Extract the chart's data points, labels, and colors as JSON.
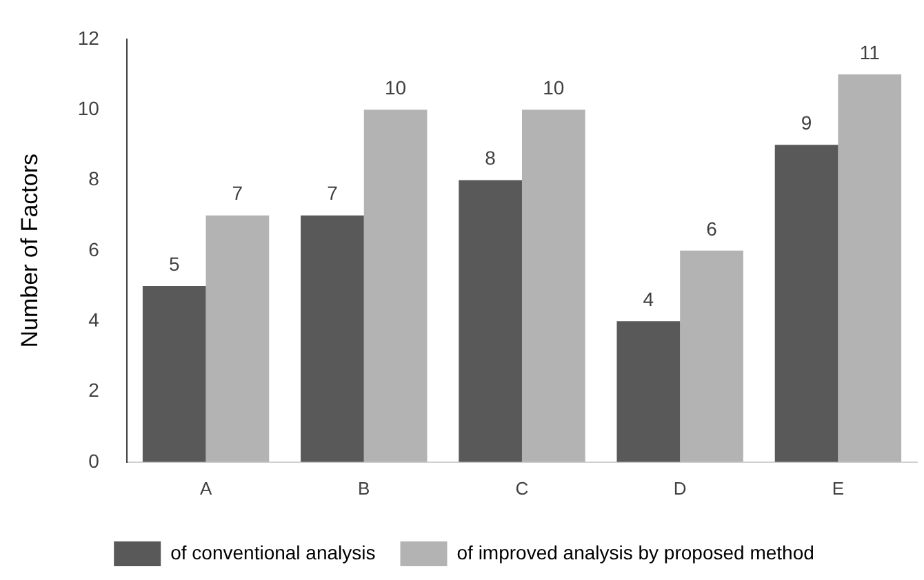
{
  "chart_data": {
    "type": "bar",
    "ylabel": "Number of Factors",
    "categories": [
      "A",
      "B",
      "C",
      "D",
      "E"
    ],
    "series": [
      {
        "name": "of conventional analysis",
        "color": "#595959",
        "values": [
          5,
          7,
          8,
          4,
          9
        ]
      },
      {
        "name": "of improved analysis by proposed method",
        "color": "#b3b3b3",
        "values": [
          7,
          10,
          10,
          6,
          11
        ]
      }
    ],
    "ylim": [
      0,
      12
    ],
    "yticks": [
      0,
      2,
      4,
      6,
      8,
      10,
      12
    ],
    "grid": false,
    "legend": "bottom",
    "data_labels": true
  }
}
